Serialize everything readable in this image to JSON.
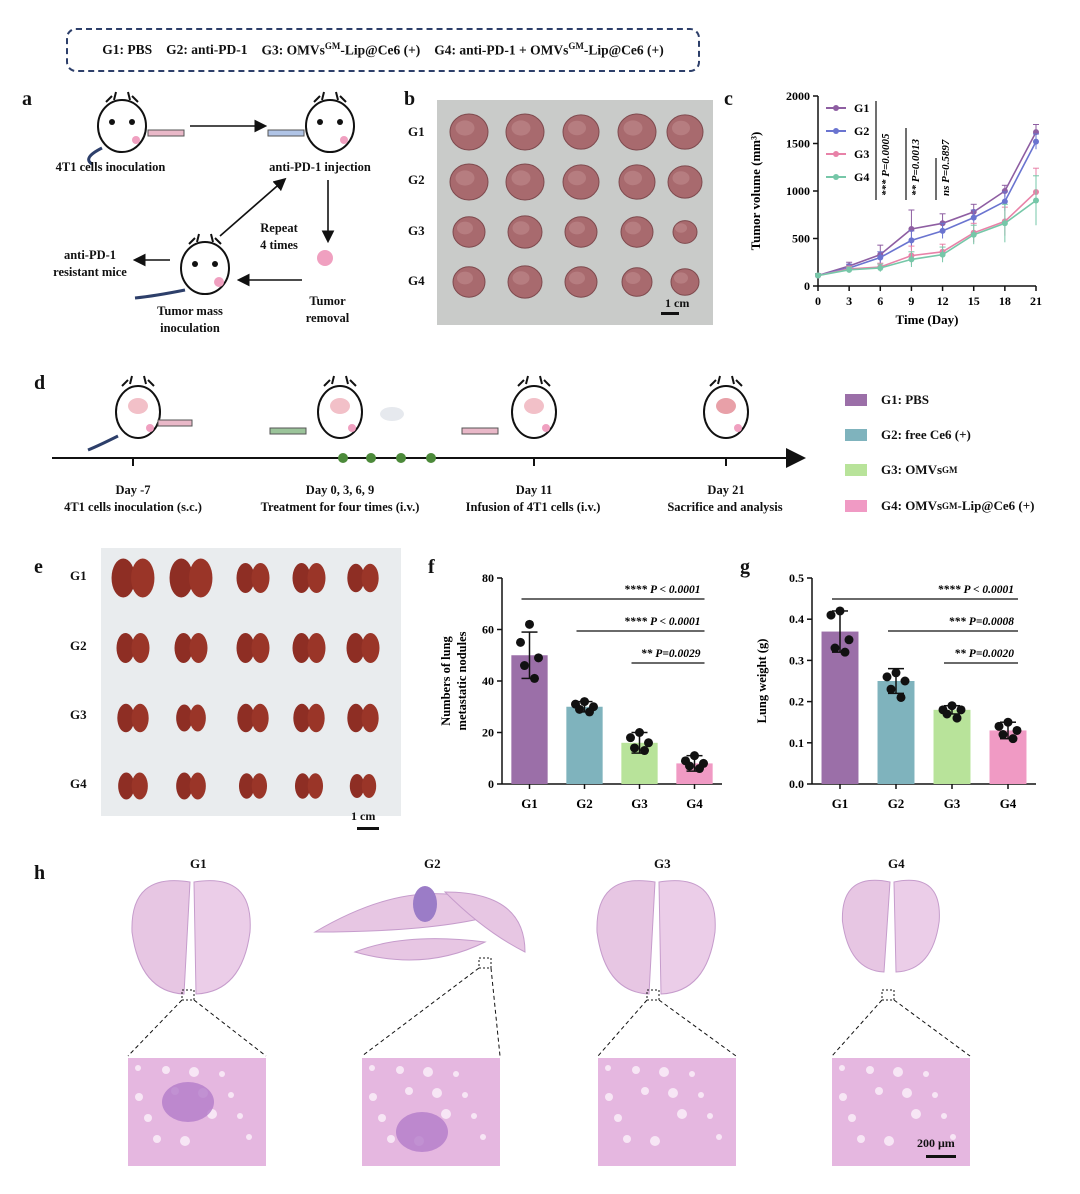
{
  "legend": {
    "g1": "G1: PBS",
    "g2": "G2: anti-PD-1",
    "g3": "G3: OMVs",
    "g3_sup": "GM",
    "g3_rest": "-Lip@Ce6 (+)",
    "g4": "G4: anti-PD-1 + OMVs",
    "g4_sup": "GM",
    "g4_rest": "-Lip@Ce6 (+)"
  },
  "panel_a": {
    "letter": "a",
    "step1": "4T1 cells inoculation",
    "step2": "anti-PD-1 injection",
    "repeat": "Repeat",
    "repeat2": "4 times",
    "resistant1": "anti-PD-1",
    "resistant2": "resistant mice",
    "mass1": "Tumor mass",
    "mass2": "inoculation",
    "removal1": "Tumor",
    "removal2": "removal"
  },
  "panel_b": {
    "letter": "b",
    "rows": [
      "G1",
      "G2",
      "G3",
      "G4"
    ],
    "scale": "1 cm"
  },
  "panel_c": {
    "letter": "c",
    "chart_data": {
      "type": "line",
      "title": "",
      "xlabel": "Time (Day)",
      "ylabel": "Tumor volume (mm³)",
      "x": [
        0,
        3,
        6,
        9,
        12,
        15,
        18,
        21
      ],
      "xticks": [
        "0",
        "3",
        "6",
        "9",
        "12",
        "15",
        "18",
        "21"
      ],
      "yticks": [
        "0",
        "500",
        "1000",
        "1500",
        "2000"
      ],
      "ylim": [
        0,
        2000
      ],
      "series": [
        {
          "name": "G1",
          "color": "#8e5ea2",
          "values": [
            110,
            210,
            330,
            600,
            660,
            780,
            1000,
            1620
          ],
          "err": [
            20,
            40,
            100,
            200,
            100,
            80,
            60,
            80
          ]
        },
        {
          "name": "G2",
          "color": "#6a74d0",
          "values": [
            110,
            190,
            300,
            480,
            580,
            720,
            890,
            1520
          ],
          "err": [
            20,
            40,
            60,
            100,
            80,
            80,
            100,
            80
          ]
        },
        {
          "name": "G3",
          "color": "#e882a8",
          "values": [
            110,
            180,
            200,
            320,
            360,
            560,
            680,
            990
          ],
          "err": [
            20,
            30,
            40,
            100,
            80,
            100,
            150,
            250
          ]
        },
        {
          "name": "G4",
          "color": "#76c7a8",
          "values": [
            110,
            170,
            190,
            280,
            330,
            540,
            660,
            900
          ],
          "err": [
            20,
            30,
            40,
            80,
            80,
            100,
            200,
            260
          ]
        }
      ],
      "annotations": [
        "*** P=0.0005",
        "** P=0.0013",
        "ns P=0.5897"
      ]
    }
  },
  "panel_d": {
    "letter": "d",
    "t1_day": "Day -7",
    "t1_desc": "4T1 cells inoculation (s.c.)",
    "t2_day": "Day 0, 3, 6, 9",
    "t2_desc": "Treatment for four times (i.v.)",
    "t3_day": "Day 11",
    "t3_desc": "Infusion of 4T1 cells (i.v.)",
    "t4_day": "Day 21",
    "t4_desc": "Sacrifice and analysis",
    "legend": [
      {
        "label": "G1: PBS",
        "sup": "",
        "rest": "",
        "color": "#9b6fa8"
      },
      {
        "label": "G2: free Ce6 (+)",
        "sup": "",
        "rest": "",
        "color": "#7fb3bd"
      },
      {
        "label": "G3: OMVs",
        "sup": "GM",
        "rest": "",
        "color": "#b8e39a"
      },
      {
        "label": "G4: OMVs",
        "sup": "GM",
        "rest": "-Lip@Ce6 (+)",
        "color": "#f09ac4"
      }
    ]
  },
  "panel_e": {
    "letter": "e",
    "rows": [
      "G1",
      "G2",
      "G3",
      "G4"
    ],
    "scale": "1 cm"
  },
  "panel_f": {
    "letter": "f",
    "chart_data": {
      "type": "bar",
      "categories": [
        "G1",
        "G2",
        "G3",
        "G4"
      ],
      "values": [
        50,
        30,
        16,
        8
      ],
      "err": [
        9,
        2,
        4,
        3
      ],
      "points": [
        [
          62,
          55,
          49,
          46,
          41
        ],
        [
          32,
          31,
          30,
          29,
          28
        ],
        [
          20,
          18,
          16,
          14,
          13
        ],
        [
          11,
          9,
          8,
          7,
          6
        ]
      ],
      "colors": [
        "#9b6fa8",
        "#7fb3bd",
        "#b8e39a",
        "#f09ac4"
      ],
      "ylabel": "Numbers of lung metastatic nodules",
      "ylabel1": "Numbers of lung",
      "ylabel2": "metastatic nodules",
      "yticks": [
        "0",
        "20",
        "40",
        "60",
        "80"
      ],
      "ylim": [
        0,
        80
      ],
      "comparisons": [
        "**** P < 0.0001",
        "**** P < 0.0001",
        "** P=0.0029"
      ]
    }
  },
  "panel_g": {
    "letter": "g",
    "chart_data": {
      "type": "bar",
      "categories": [
        "G1",
        "G2",
        "G3",
        "G4"
      ],
      "values": [
        0.37,
        0.25,
        0.18,
        0.13
      ],
      "err": [
        0.05,
        0.03,
        0.01,
        0.02
      ],
      "points": [
        [
          0.42,
          0.41,
          0.35,
          0.33,
          0.32
        ],
        [
          0.27,
          0.26,
          0.25,
          0.23,
          0.21
        ],
        [
          0.19,
          0.18,
          0.18,
          0.17,
          0.16
        ],
        [
          0.15,
          0.14,
          0.13,
          0.12,
          0.11
        ]
      ],
      "colors": [
        "#9b6fa8",
        "#7fb3bd",
        "#b8e39a",
        "#f09ac4"
      ],
      "ylabel": "Lung weight (g)",
      "yticks": [
        "0.0",
        "0.1",
        "0.2",
        "0.3",
        "0.4",
        "0.5"
      ],
      "ylim": [
        0,
        0.5
      ],
      "comparisons": [
        "**** P < 0.0001",
        "*** P=0.0008",
        "** P=0.0020"
      ]
    }
  },
  "panel_h": {
    "letter": "h",
    "titles": [
      "G1",
      "G2",
      "G3",
      "G4"
    ],
    "scale": "200 μm"
  }
}
